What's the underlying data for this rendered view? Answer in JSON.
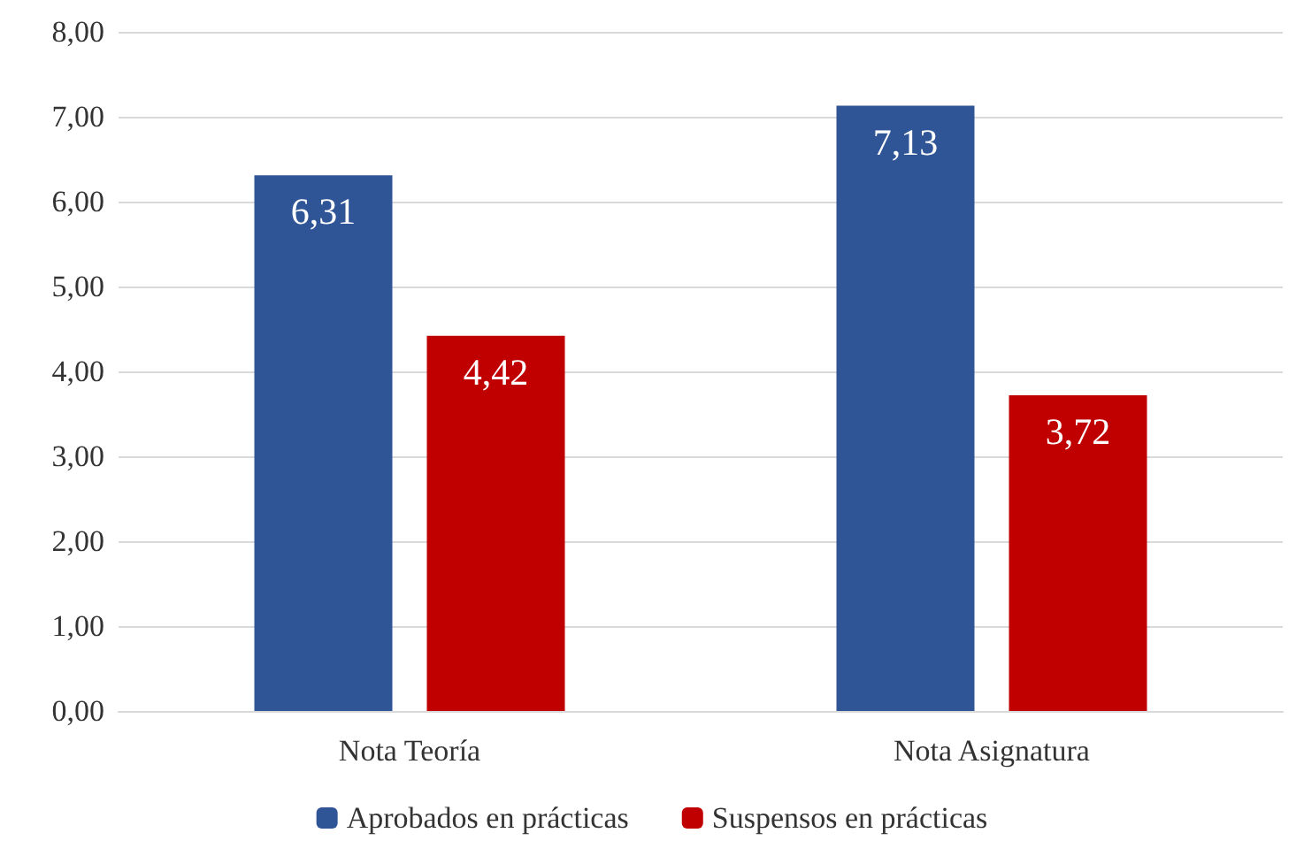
{
  "chart_data": {
    "type": "bar",
    "categories": [
      "Nota Teoría",
      "Nota Asignatura"
    ],
    "series": [
      {
        "name": "Aprobados en prácticas",
        "color": "#2f5597",
        "values": [
          6.31,
          7.13
        ],
        "value_labels": [
          "6,31",
          "7,13"
        ]
      },
      {
        "name": "Suspensos en prácticas",
        "color": "#c00000",
        "values": [
          4.42,
          3.72
        ],
        "value_labels": [
          "4,42",
          "3,72"
        ]
      }
    ],
    "ylim": [
      0,
      8
    ],
    "yticks": [
      {
        "value": 0,
        "label": "0,00"
      },
      {
        "value": 1,
        "label": "1,00"
      },
      {
        "value": 2,
        "label": "2,00"
      },
      {
        "value": 3,
        "label": "3,00"
      },
      {
        "value": 4,
        "label": "4,00"
      },
      {
        "value": 5,
        "label": "5,00"
      },
      {
        "value": 6,
        "label": "6,00"
      },
      {
        "value": 7,
        "label": "7,00"
      },
      {
        "value": 8,
        "label": "8,00"
      }
    ],
    "grid": "y",
    "legend": "bottom"
  }
}
